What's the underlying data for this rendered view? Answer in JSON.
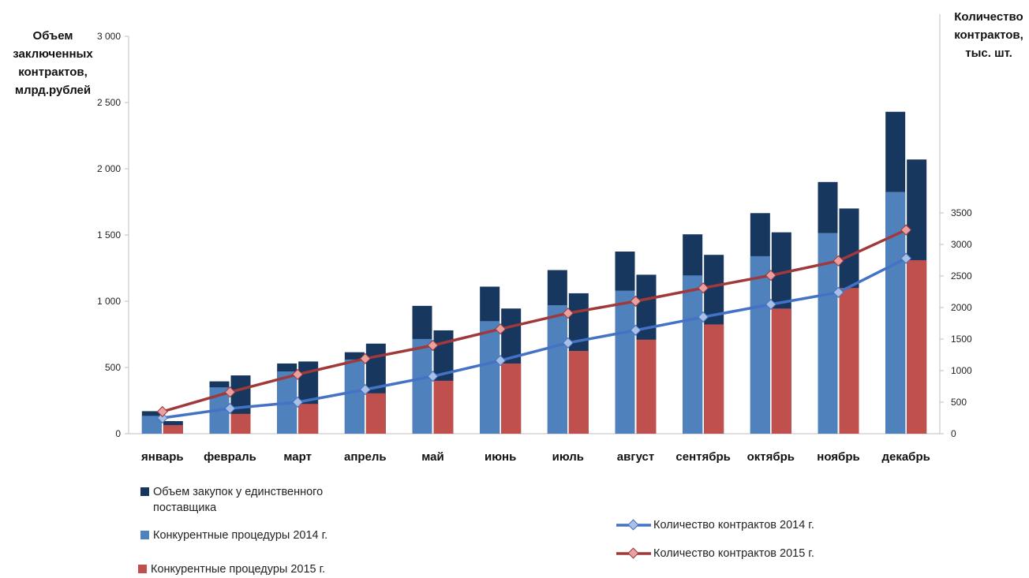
{
  "chart_data": {
    "type": "bar",
    "categories": [
      "январь",
      "февраль",
      "март",
      "апрель",
      "май",
      "июнь",
      "июль",
      "август",
      "сентябрь",
      "октябрь",
      "ноябрь",
      "декабрь"
    ],
    "y_left": {
      "label": "Объем\nзаключенных\nконтрактов,\nмлрд.рублей",
      "ticks": [
        "3 000",
        "2 500",
        "2 000",
        "1 500",
        "1 000",
        "500",
        "0"
      ],
      "lim": [
        0,
        3000
      ]
    },
    "y_right": {
      "label": "Количество\nконтрактов,\nтыс. шт.",
      "ticks": [
        "3500",
        "3000",
        "2500",
        "2000",
        "1500",
        "1000",
        "500",
        "0"
      ],
      "lim": [
        0,
        3500
      ]
    },
    "bars_2014": {
      "competitive_name": "Конкурентные процедуры 2014 г.",
      "competitive": [
        135,
        350,
        470,
        560,
        715,
        850,
        970,
        1080,
        1195,
        1340,
        1515,
        1825
      ],
      "total": [
        170,
        395,
        530,
        615,
        965,
        1110,
        1235,
        1375,
        1505,
        1665,
        1900,
        2430
      ]
    },
    "bars_2015": {
      "competitive_name": "Конкурентные процедуры 2015 г.",
      "competitive": [
        65,
        150,
        225,
        305,
        400,
        530,
        625,
        710,
        825,
        945,
        1100,
        1310
      ],
      "total": [
        95,
        440,
        545,
        680,
        780,
        945,
        1060,
        1200,
        1350,
        1520,
        1700,
        2070
      ]
    },
    "single_supplier_name": "Объем закупок у единственного\nпоставщика",
    "lines": [
      {
        "name": "Количество контрактов 2014 г.",
        "color": "#4472c4",
        "values": [
          250,
          400,
          500,
          700,
          910,
          1160,
          1440,
          1640,
          1850,
          2050,
          2240,
          2780
        ]
      },
      {
        "name": "Количество контрактов 2015 г.",
        "color": "#a0393a",
        "values": [
          350,
          660,
          940,
          1190,
          1400,
          1660,
          1910,
          2100,
          2310,
          2510,
          2740,
          3230
        ]
      }
    ],
    "colors": {
      "single_supplier": "#17375e",
      "competitive_2014": "#4f81bd",
      "competitive_2015": "#c0504d"
    }
  }
}
